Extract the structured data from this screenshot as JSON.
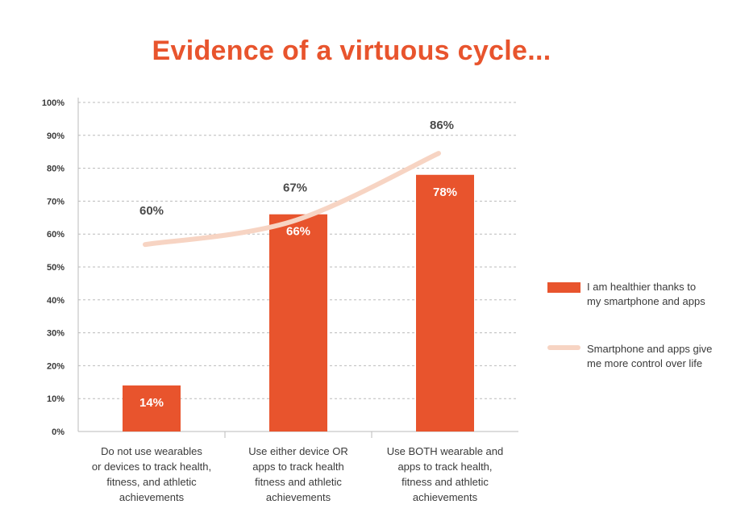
{
  "colors": {
    "bar": "#e8542d",
    "line": "#f7d4c3",
    "title": "#e8542d",
    "grid": "#bbbbbb"
  },
  "chart_data": {
    "type": "bar",
    "title": "Evidence of a virtuous cycle...",
    "categories": [
      [
        "Do not use wearables",
        "or devices to track health,",
        "fitness, and athletic",
        "achievements"
      ],
      [
        "Use either device OR",
        "apps to track health",
        "fitness and athletic",
        "achievements"
      ],
      [
        "Use BOTH wearable and",
        "apps to track health,",
        "fitness and athletic",
        "achievements"
      ]
    ],
    "series": [
      {
        "name": "I am healthier thanks to my smartphone and apps",
        "legend_lines": [
          "I am healthier thanks to",
          "my smartphone and apps"
        ],
        "type": "bar",
        "values": [
          14,
          66,
          78
        ],
        "labels": [
          "14%",
          "66%",
          "78%"
        ]
      },
      {
        "name": "Smartphone and apps give me more control over life",
        "legend_lines": [
          "Smartphone and apps give",
          "me more control over life"
        ],
        "type": "line",
        "values": [
          60,
          67,
          86
        ],
        "labels": [
          "60%",
          "67%",
          "86%"
        ]
      }
    ],
    "ylim": [
      0,
      100
    ],
    "yticks": [
      "0%",
      "10%",
      "20%",
      "30%",
      "40%",
      "50%",
      "60%",
      "70%",
      "80%",
      "90%",
      "100%"
    ],
    "grid": true,
    "legend_position": "right"
  }
}
